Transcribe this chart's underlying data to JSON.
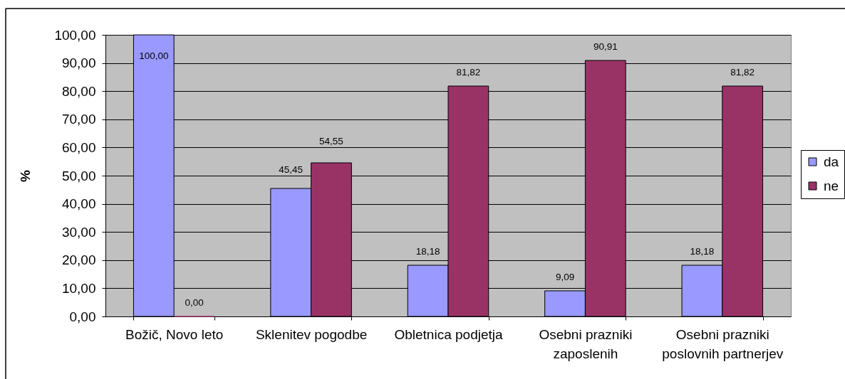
{
  "chart_data": {
    "type": "bar",
    "ylabel": "%",
    "categories": [
      "Božič, Novo leto",
      "Sklenitev pogodbe",
      "Obletnica podjetja",
      "Osebni prazniki zaposlenih",
      "Osebni prazniki poslovnih partnerjev"
    ],
    "series": [
      {
        "name": "da",
        "color": "#9999ff",
        "values": [
          100,
          45.45,
          18.18,
          9.09,
          18.18
        ],
        "value_labels": [
          "100,00",
          "45,45",
          "18,18",
          "9,09",
          "18,18"
        ]
      },
      {
        "name": "ne",
        "color": "#993366",
        "values": [
          0,
          54.55,
          81.82,
          90.91,
          81.82
        ],
        "value_labels": [
          "0,00",
          "54,55",
          "81,82",
          "90,91",
          "81,82"
        ]
      }
    ],
    "ylim": [
      0,
      100
    ],
    "yticks": [
      {
        "value": 0,
        "label": "0,00"
      },
      {
        "value": 10,
        "label": "10,00"
      },
      {
        "value": 20,
        "label": "20,00"
      },
      {
        "value": 30,
        "label": "30,00"
      },
      {
        "value": 40,
        "label": "40,00"
      },
      {
        "value": 50,
        "label": "50,00"
      },
      {
        "value": 60,
        "label": "60,00"
      },
      {
        "value": 70,
        "label": "70,00"
      },
      {
        "value": 80,
        "label": "80,00"
      },
      {
        "value": 90,
        "label": "90,00"
      },
      {
        "value": 100,
        "label": "100,00"
      }
    ],
    "grid": "y",
    "legend": "right"
  }
}
